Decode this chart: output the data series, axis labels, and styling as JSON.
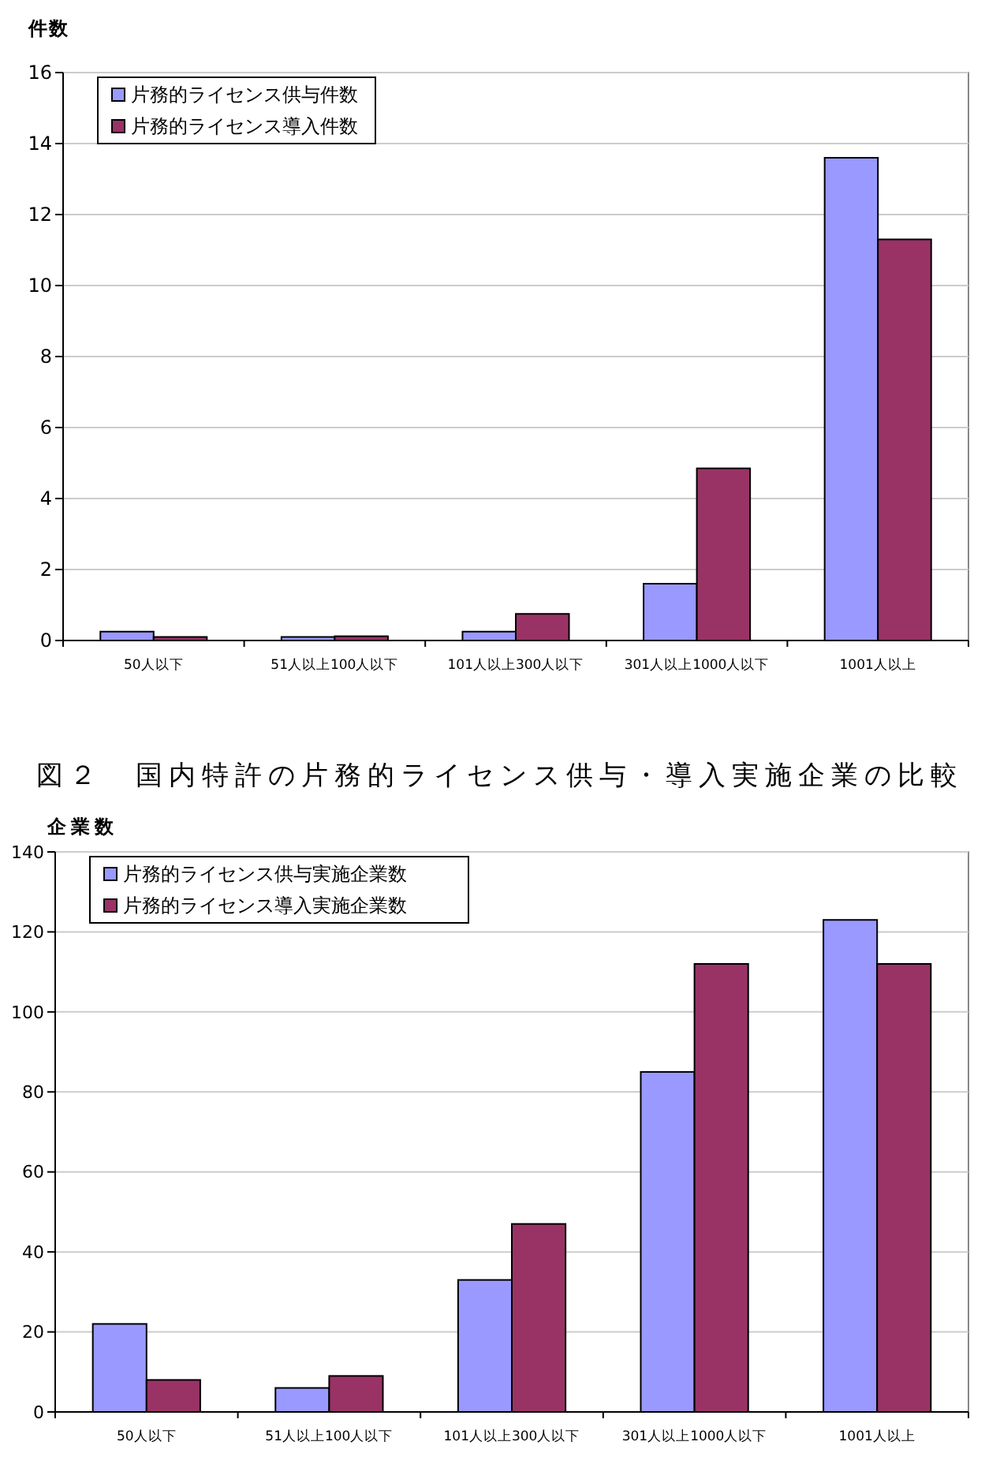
{
  "chart_data": [
    {
      "type": "bar",
      "ylabel": "件数",
      "categories": [
        "50人以下",
        "51人以上100人以下",
        "101人以上300人以下",
        "301人以上1000人以下",
        "1001人以上"
      ],
      "series": [
        {
          "name": "片務的ライセンス供与件数",
          "color": "#9999ff",
          "values": [
            0.25,
            0.1,
            0.25,
            1.6,
            13.6
          ]
        },
        {
          "name": "片務的ライセンス導入件数",
          "color": "#993366",
          "values": [
            0.1,
            0.12,
            0.75,
            4.85,
            11.3
          ]
        }
      ],
      "ylim": [
        0,
        16
      ],
      "yticks": [
        0,
        2,
        4,
        6,
        8,
        10,
        12,
        14,
        16
      ],
      "grid": "y",
      "legend": "top left"
    },
    {
      "type": "bar",
      "title": "図２　国内特許の片務的ライセンス供与・導入実施企業の比較",
      "ylabel": "企業数",
      "categories": [
        "50人以下",
        "51人以上100人以下",
        "101人以上300人以下",
        "301人以上1000人以下",
        "1001人以上"
      ],
      "series": [
        {
          "name": "片務的ライセンス供与実施企業数",
          "color": "#9999ff",
          "values": [
            22,
            6,
            33,
            85,
            123
          ]
        },
        {
          "name": "片務的ライセンス導入実施企業数",
          "color": "#993366",
          "values": [
            8,
            9,
            47,
            112,
            112
          ]
        }
      ],
      "ylim": [
        0,
        140
      ],
      "yticks": [
        0,
        20,
        40,
        60,
        80,
        100,
        120,
        140
      ],
      "grid": "y",
      "legend": "top left"
    }
  ]
}
